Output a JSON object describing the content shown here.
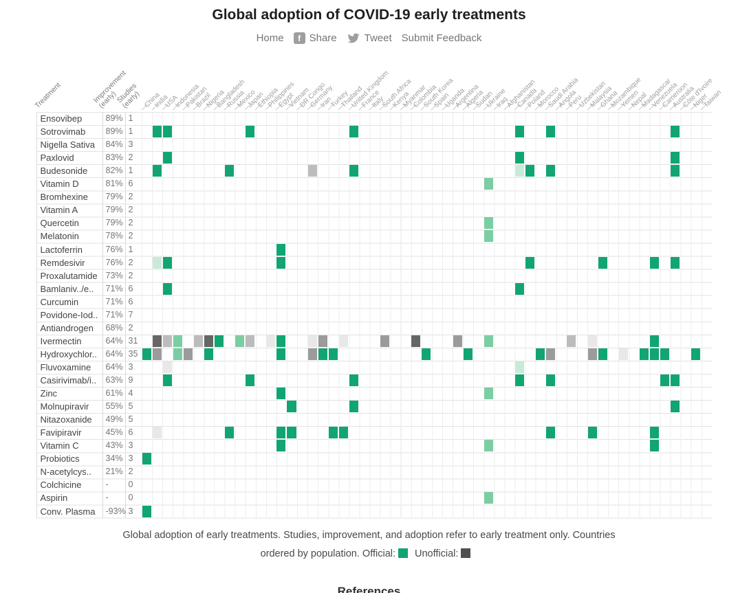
{
  "title": "Global adoption of COVID-19 early treatments",
  "nav": {
    "home": "Home",
    "share": "Share",
    "tweet": "Tweet",
    "feedback": "Submit Feedback",
    "facebook_icon_letter": "f"
  },
  "legend": {
    "official_label": "Official:",
    "unofficial_label": "Unofficial:",
    "official_color": "#11a571",
    "unofficial_color": "#4f4f4f"
  },
  "caption": {
    "line1": "Global adoption of early treatments. Studies, improvement, and adoption refer to early treatment only. Countries",
    "line2_prefix": "ordered by population."
  },
  "footer_partial": "References",
  "chart_data": {
    "type": "heatmap",
    "title": "Global adoption of COVID-19 early treatments",
    "col_headers": [
      "Treatment",
      "Improvement\n(early)",
      "Studies\n(early)"
    ],
    "legend_position": "bottom",
    "note": "Countries ordered by population. Official: green. Unofficial: gray.",
    "cell_colors": {
      "g": "#11a571",
      "mgn": "#7bcda3",
      "pgn": "#c8ebd9",
      "dgr": "#666666",
      "mgr": "#9b9b9b",
      "lgr": "#bcbcbc",
      "pgr": "#e8e8e8"
    },
    "countries": [
      "China",
      "India",
      "USA",
      "Indonesia",
      "Pakistan",
      "Brazil",
      "Nigeria",
      "Bangladesh",
      "Russia",
      "Mexico",
      "Japan",
      "Ethiopia",
      "Philippines",
      "Egypt",
      "Vietnam",
      "DR Congo",
      "Germany",
      "Iran",
      "Turkey",
      "Thailand",
      "United Kingdom",
      "France",
      "Italy",
      "South Africa",
      "Kenya",
      "Myanmar",
      "Colombia",
      "South Korea",
      "Spain",
      "Uganda",
      "Argentina",
      "Algeria",
      "Sudan",
      "Ukraine",
      "Iraq",
      "Afghanistan",
      "Canada",
      "Poland",
      "Morocco",
      "Saudi Arabia",
      "Angola",
      "Peru",
      "Uzbekistan",
      "Malaysia",
      "Ghana",
      "Mozambique",
      "Yemen",
      "Nepal",
      "Madagascar",
      "Venezuela",
      "Cameroon",
      "Australia",
      "Côte d'Ivoire",
      "Niger",
      "Taiwan"
    ],
    "rows": [
      {
        "treatment": "Ensovibep",
        "improvement": "89%",
        "studies": "1",
        "cells": []
      },
      {
        "treatment": "Sotrovimab",
        "improvement": "89%",
        "studies": "1",
        "cells": [
          [
            1,
            "g"
          ],
          [
            2,
            "g"
          ],
          [
            10,
            "g"
          ],
          [
            20,
            "g"
          ],
          [
            36,
            "g"
          ],
          [
            39,
            "g"
          ],
          [
            51,
            "g"
          ]
        ]
      },
      {
        "treatment": "Nigella Sativa",
        "improvement": "84%",
        "studies": "3",
        "cells": []
      },
      {
        "treatment": "Paxlovid",
        "improvement": "83%",
        "studies": "2",
        "cells": [
          [
            2,
            "g"
          ],
          [
            36,
            "g"
          ],
          [
            51,
            "g"
          ]
        ]
      },
      {
        "treatment": "Budesonide",
        "improvement": "82%",
        "studies": "1",
        "cells": [
          [
            1,
            "g"
          ],
          [
            8,
            "g"
          ],
          [
            16,
            "lgr"
          ],
          [
            20,
            "g"
          ],
          [
            36,
            "pgn"
          ],
          [
            37,
            "g"
          ],
          [
            39,
            "g"
          ],
          [
            51,
            "g"
          ]
        ]
      },
      {
        "treatment": "Vitamin D",
        "improvement": "81%",
        "studies": "6",
        "cells": [
          [
            33,
            "mgn"
          ]
        ]
      },
      {
        "treatment": "Bromhexine",
        "improvement": "79%",
        "studies": "2",
        "cells": []
      },
      {
        "treatment": "Vitamin A",
        "improvement": "79%",
        "studies": "2",
        "cells": []
      },
      {
        "treatment": "Quercetin",
        "improvement": "79%",
        "studies": "2",
        "cells": [
          [
            33,
            "mgn"
          ]
        ]
      },
      {
        "treatment": "Melatonin",
        "improvement": "78%",
        "studies": "2",
        "cells": [
          [
            33,
            "mgn"
          ]
        ]
      },
      {
        "treatment": "Lactoferrin",
        "improvement": "76%",
        "studies": "1",
        "cells": [
          [
            13,
            "g"
          ]
        ]
      },
      {
        "treatment": "Remdesivir",
        "improvement": "76%",
        "studies": "2",
        "cells": [
          [
            1,
            "pgn"
          ],
          [
            2,
            "g"
          ],
          [
            13,
            "g"
          ],
          [
            37,
            "g"
          ],
          [
            44,
            "g"
          ],
          [
            49,
            "g"
          ],
          [
            51,
            "g"
          ]
        ]
      },
      {
        "treatment": "Proxalutamide",
        "improvement": "73%",
        "studies": "2",
        "cells": []
      },
      {
        "treatment": "Bamlaniv../e..",
        "improvement": "71%",
        "studies": "6",
        "cells": [
          [
            2,
            "g"
          ],
          [
            36,
            "g"
          ]
        ]
      },
      {
        "treatment": "Curcumin",
        "improvement": "71%",
        "studies": "6",
        "cells": []
      },
      {
        "treatment": "Povidone-Iod..",
        "improvement": "71%",
        "studies": "7",
        "cells": []
      },
      {
        "treatment": "Antiandrogen",
        "improvement": "68%",
        "studies": "2",
        "cells": []
      },
      {
        "treatment": "Ivermectin",
        "improvement": "64%",
        "studies": "31",
        "cells": [
          [
            1,
            "dgr"
          ],
          [
            2,
            "lgr"
          ],
          [
            3,
            "mgn"
          ],
          [
            5,
            "lgr"
          ],
          [
            6,
            "dgr"
          ],
          [
            7,
            "g"
          ],
          [
            9,
            "mgn"
          ],
          [
            10,
            "lgr"
          ],
          [
            12,
            "pgr"
          ],
          [
            13,
            "g"
          ],
          [
            16,
            "pgr"
          ],
          [
            17,
            "mgr"
          ],
          [
            19,
            "pgr"
          ],
          [
            23,
            "mgr"
          ],
          [
            26,
            "dgr"
          ],
          [
            30,
            "mgr"
          ],
          [
            33,
            "mgn"
          ],
          [
            41,
            "lgr"
          ],
          [
            43,
            "pgr"
          ],
          [
            49,
            "g"
          ]
        ]
      },
      {
        "treatment": "Hydroxychlor..",
        "improvement": "64%",
        "studies": "35",
        "cells": [
          [
            0,
            "g"
          ],
          [
            1,
            "mgr"
          ],
          [
            3,
            "mgn"
          ],
          [
            4,
            "mgr"
          ],
          [
            6,
            "g"
          ],
          [
            13,
            "g"
          ],
          [
            16,
            "mgr"
          ],
          [
            17,
            "g"
          ],
          [
            18,
            "g"
          ],
          [
            27,
            "g"
          ],
          [
            31,
            "g"
          ],
          [
            38,
            "g"
          ],
          [
            39,
            "mgr"
          ],
          [
            43,
            "mgr"
          ],
          [
            44,
            "g"
          ],
          [
            46,
            "pgr"
          ],
          [
            48,
            "g"
          ],
          [
            49,
            "g"
          ],
          [
            50,
            "g"
          ],
          [
            53,
            "g"
          ]
        ]
      },
      {
        "treatment": "Fluvoxamine",
        "improvement": "64%",
        "studies": "3",
        "cells": [
          [
            2,
            "pgr"
          ],
          [
            36,
            "pgn"
          ]
        ]
      },
      {
        "treatment": "Casirivimab/i..",
        "improvement": "63%",
        "studies": "9",
        "cells": [
          [
            2,
            "g"
          ],
          [
            10,
            "g"
          ],
          [
            20,
            "g"
          ],
          [
            36,
            "g"
          ],
          [
            39,
            "g"
          ],
          [
            50,
            "g"
          ],
          [
            51,
            "g"
          ]
        ]
      },
      {
        "treatment": "Zinc",
        "improvement": "61%",
        "studies": "4",
        "cells": [
          [
            13,
            "g"
          ],
          [
            33,
            "mgn"
          ]
        ]
      },
      {
        "treatment": "Molnupiravir",
        "improvement": "55%",
        "studies": "5",
        "cells": [
          [
            14,
            "g"
          ],
          [
            20,
            "g"
          ],
          [
            51,
            "g"
          ]
        ]
      },
      {
        "treatment": "Nitazoxanide",
        "improvement": "49%",
        "studies": "5",
        "cells": []
      },
      {
        "treatment": "Favipiravir",
        "improvement": "45%",
        "studies": "6",
        "cells": [
          [
            1,
            "pgr"
          ],
          [
            8,
            "g"
          ],
          [
            13,
            "g"
          ],
          [
            14,
            "g"
          ],
          [
            18,
            "g"
          ],
          [
            19,
            "g"
          ],
          [
            39,
            "g"
          ],
          [
            43,
            "g"
          ],
          [
            49,
            "g"
          ]
        ]
      },
      {
        "treatment": "Vitamin C",
        "improvement": "43%",
        "studies": "3",
        "cells": [
          [
            13,
            "g"
          ],
          [
            33,
            "mgn"
          ],
          [
            49,
            "g"
          ]
        ]
      },
      {
        "treatment": "Probiotics",
        "improvement": "34%",
        "studies": "3",
        "cells": [
          [
            0,
            "g"
          ]
        ]
      },
      {
        "treatment": "N-acetylcys..",
        "improvement": "21%",
        "studies": "2",
        "cells": []
      },
      {
        "treatment": "Colchicine",
        "improvement": "-",
        "studies": "0",
        "cells": []
      },
      {
        "treatment": "Aspirin",
        "improvement": "-",
        "studies": "0",
        "cells": [
          [
            33,
            "mgn"
          ]
        ]
      },
      {
        "treatment": "Conv. Plasma",
        "improvement": "-93%",
        "studies": "3",
        "cells": [
          [
            0,
            "g"
          ]
        ]
      }
    ]
  }
}
